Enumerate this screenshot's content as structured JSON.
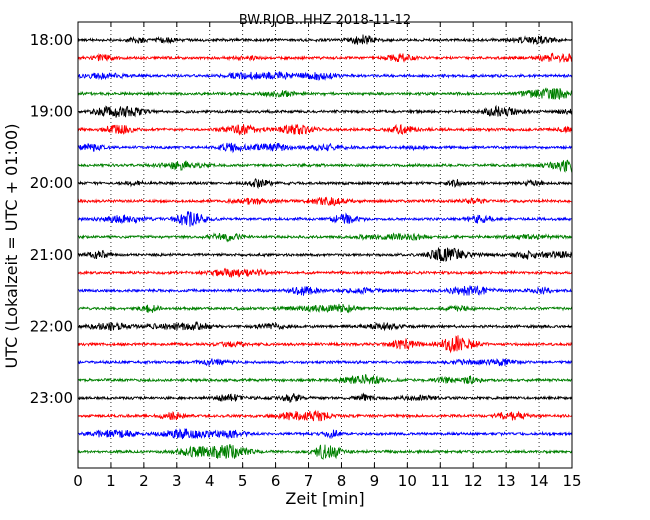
{
  "chart_data": {
    "type": "line",
    "title": "BW.RJOB..HHZ 2018-11-12",
    "xlabel": "Zeit  [min]",
    "ylabel": "UTC (Lokalzeit = UTC + 01:00)",
    "xlim": [
      0,
      15
    ],
    "x_ticks": [
      "0",
      "1",
      "2",
      "3",
      "4",
      "5",
      "6",
      "7",
      "8",
      "9",
      "10",
      "11",
      "12",
      "13",
      "14",
      "15"
    ],
    "y_ticks": [
      "18:00",
      "19:00",
      "20:00",
      "21:00",
      "22:00",
      "23:00"
    ],
    "trace_interval_minutes": 15,
    "first_trace": "18:00",
    "trace_count": 24,
    "grid": "vertical dotted at every minute",
    "trace_colors": [
      "#000000",
      "#ff0000",
      "#0000ff",
      "#008000"
    ]
  }
}
